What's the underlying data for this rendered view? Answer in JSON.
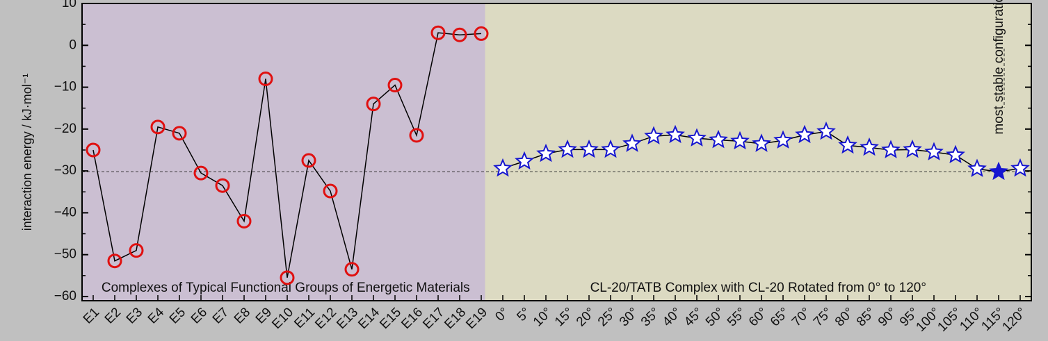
{
  "chart_data": {
    "type": "line",
    "y_label": "interaction energy / kJ·mol⁻¹",
    "categories": [
      "E1",
      "E2",
      "E3",
      "E4",
      "E5",
      "E6",
      "E7",
      "E8",
      "E9",
      "E10",
      "E11",
      "E12",
      "E13",
      "E14",
      "E15",
      "E16",
      "E17",
      "E18",
      "E19",
      "0°",
      "5°",
      "10°",
      "15°",
      "20°",
      "25°",
      "30°",
      "35°",
      "40°",
      "45°",
      "50°",
      "55°",
      "60°",
      "65°",
      "70°",
      "75°",
      "80°",
      "85°",
      "90°",
      "95°",
      "100°",
      "105°",
      "110°",
      "115°",
      "120°"
    ],
    "series": [
      {
        "marker": "circle",
        "color": "#e01010",
        "values": [
          -25,
          -51.5,
          -49,
          -19.5,
          -21,
          -30.5,
          -33.5,
          -42,
          -8,
          -55.5,
          -27.5,
          -34.8,
          -53.5,
          -14,
          -9.5,
          -21.5,
          3,
          2.5,
          2.8,
          null,
          null,
          null,
          null,
          null,
          null,
          null,
          null,
          null,
          null,
          null,
          null,
          null,
          null,
          null,
          null,
          null,
          null,
          null,
          null,
          null,
          null,
          null,
          null,
          null
        ]
      },
      {
        "marker": "star",
        "color": "#1515d0",
        "values": [
          null,
          null,
          null,
          null,
          null,
          null,
          null,
          null,
          null,
          null,
          null,
          null,
          null,
          null,
          null,
          null,
          null,
          null,
          null,
          -29.4,
          -27.7,
          -25.9,
          -24.9,
          -24.9,
          -24.9,
          -23.5,
          -21.7,
          -21.4,
          -22.2,
          -22.6,
          -22.9,
          -23.5,
          -22.7,
          -21.4,
          -20.6,
          -23.9,
          -24.4,
          -25.0,
          -24.9,
          -25.5,
          -26.2,
          -29.5,
          -30.2,
          -29.4
        ]
      }
    ],
    "filled_category": "115°",
    "reference_line": -30.2,
    "annotation": "most stable configuration",
    "regions": [
      {
        "label": "Complexes of Typical Functional Groups of Energetic Materials",
        "color": "#cbbfd2",
        "from": "E1",
        "to": "E19"
      },
      {
        "label": "CL-20/TATB Complex with CL-20 Rotated from 0° to 120°",
        "color": "#dcdac2",
        "from": "0°",
        "to": "120°"
      }
    ],
    "ylim": [
      -61,
      10
    ],
    "yticks": [
      {
        "value": 10,
        "label": "10"
      },
      0,
      {
        "value": -10,
        "label": "−10"
      },
      {
        "value": -20,
        "label": "−20"
      },
      {
        "value": -30,
        "label": "−30"
      },
      {
        "value": -40,
        "label": "−40"
      },
      {
        "value": -50,
        "label": "−50"
      },
      {
        "value": -60,
        "label": "−60"
      }
    ],
    "minor_yticks": [
      5,
      -5,
      -15,
      -25,
      -35,
      -45,
      -55
    ]
  }
}
